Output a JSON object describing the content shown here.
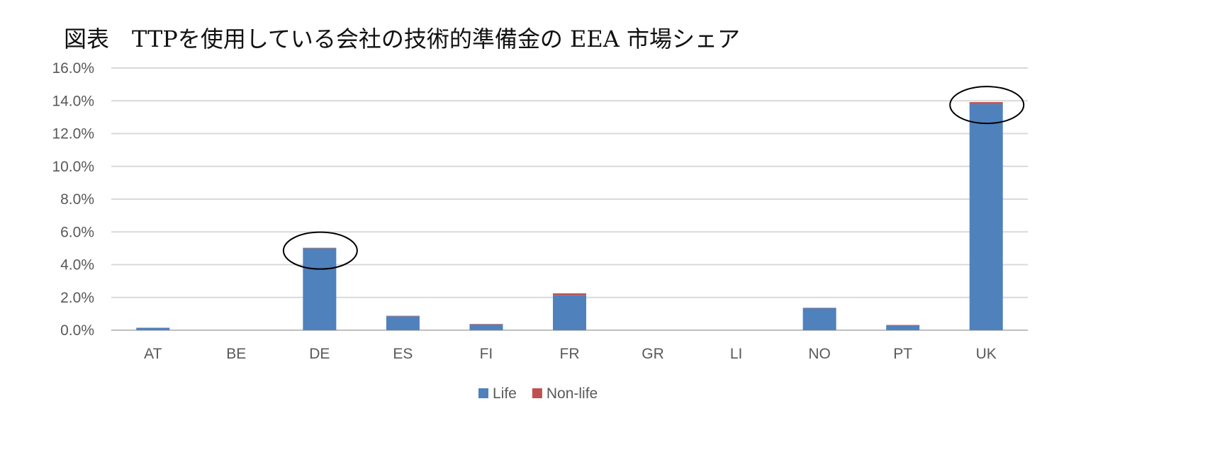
{
  "title": "図表　TTPを使用している会社の技術的準備金の EEA 市場シェア",
  "chart_data": {
    "type": "bar",
    "stacked": true,
    "categories": [
      "AT",
      "BE",
      "DE",
      "ES",
      "FI",
      "FR",
      "GR",
      "LI",
      "NO",
      "PT",
      "UK"
    ],
    "series": [
      {
        "name": "Life",
        "color": "#4F81BD",
        "values": [
          0.15,
          0.0,
          5.0,
          0.85,
          0.35,
          2.15,
          0.0,
          0.0,
          1.35,
          0.3,
          13.8
        ]
      },
      {
        "name": "Non-life",
        "color": "#C0504D",
        "values": [
          0.0,
          0.0,
          0.03,
          0.03,
          0.03,
          0.1,
          0.0,
          0.0,
          0.02,
          0.02,
          0.12
        ]
      }
    ],
    "ylim": [
      0,
      16
    ],
    "yticks": [
      "0.0%",
      "2.0%",
      "4.0%",
      "6.0%",
      "8.0%",
      "10.0%",
      "12.0%",
      "14.0%",
      "16.0%"
    ],
    "xlabel": "",
    "ylabel": "",
    "grid": true,
    "legend": "bottom",
    "annotations": [
      {
        "shape": "ellipse",
        "target": "DE"
      },
      {
        "shape": "ellipse",
        "target": "UK"
      }
    ]
  }
}
